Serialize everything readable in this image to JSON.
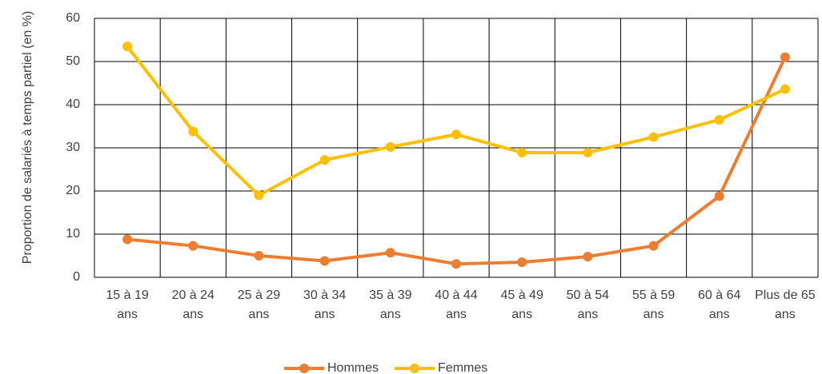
{
  "chart_data": {
    "type": "line",
    "y_label": "Proportion de salariés à temps partiel (en %)",
    "categories": [
      "15 à 19 ans",
      "20 à 24 ans",
      "25 à 29 ans",
      "30 à 34 ans",
      "35 à 39 ans",
      "40 à 44 ans",
      "45 à 49 ans",
      "50 à 54 ans",
      "55 à 59 ans",
      "60 à 64 ans",
      "Plus de 65 ans"
    ],
    "series": [
      {
        "name": "Hommes",
        "color": "#ED7D31",
        "values": [
          8.8,
          7.3,
          5.0,
          3.8,
          5.7,
          3.1,
          3.5,
          4.8,
          7.3,
          18.8,
          51.0
        ]
      },
      {
        "name": "Femmes",
        "color": "#FFC000",
        "values": [
          53.5,
          33.8,
          19.0,
          27.2,
          30.2,
          33.1,
          28.9,
          28.9,
          32.5,
          36.5,
          43.6
        ]
      }
    ],
    "ylim": [
      0,
      60
    ],
    "yticks": [
      0,
      10,
      20,
      30,
      40,
      50,
      60
    ],
    "grid": true,
    "legend": "bottom"
  }
}
